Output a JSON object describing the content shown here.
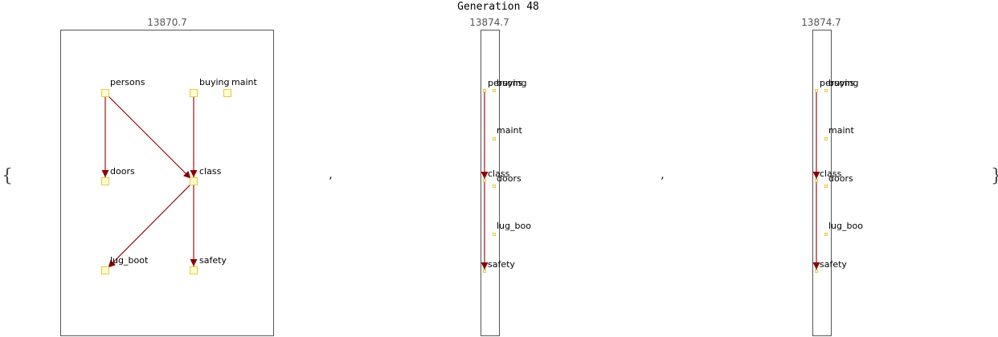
{
  "title": "Generation 48",
  "brace_open": "{",
  "brace_close": "}",
  "separator": ",",
  "colors": {
    "edge": "#8b0000",
    "node_fill": "#ffffcc",
    "node_stroke": "#e6c84a",
    "frame": "#555555"
  },
  "graphs": [
    {
      "score": "13870.7",
      "nodes": [
        {
          "id": "persons",
          "label": "persons"
        },
        {
          "id": "buying",
          "label": "buying"
        },
        {
          "id": "maint",
          "label": "maint"
        },
        {
          "id": "doors",
          "label": "doors"
        },
        {
          "id": "class",
          "label": "class"
        },
        {
          "id": "lug_boot",
          "label": "lug_boot"
        },
        {
          "id": "safety",
          "label": "safety"
        }
      ],
      "edges": [
        {
          "from": "persons",
          "to": "doors"
        },
        {
          "from": "persons",
          "to": "class"
        },
        {
          "from": "buying",
          "to": "class"
        },
        {
          "from": "class",
          "to": "lug_boot"
        },
        {
          "from": "class",
          "to": "safety"
        }
      ]
    },
    {
      "score": "13874.7",
      "nodes": [
        {
          "id": "persons",
          "label": "persons"
        },
        {
          "id": "buying",
          "label": "buying"
        },
        {
          "id": "maint",
          "label": "maint"
        },
        {
          "id": "class",
          "label": "class"
        },
        {
          "id": "doors",
          "label": "doors"
        },
        {
          "id": "lug_boot",
          "label": "lug_boo"
        },
        {
          "id": "safety",
          "label": "safety"
        }
      ],
      "edges": [
        {
          "from": "persons",
          "to": "class"
        },
        {
          "from": "class",
          "to": "safety"
        }
      ]
    },
    {
      "score": "13874.7",
      "nodes": [
        {
          "id": "persons",
          "label": "persons"
        },
        {
          "id": "buying",
          "label": "buying"
        },
        {
          "id": "maint",
          "label": "maint"
        },
        {
          "id": "class",
          "label": "class"
        },
        {
          "id": "doors",
          "label": "doors"
        },
        {
          "id": "lug_boot",
          "label": "lug_boo"
        },
        {
          "id": "safety",
          "label": "safety"
        }
      ],
      "edges": [
        {
          "from": "persons",
          "to": "class"
        },
        {
          "from": "class",
          "to": "safety"
        }
      ]
    }
  ]
}
